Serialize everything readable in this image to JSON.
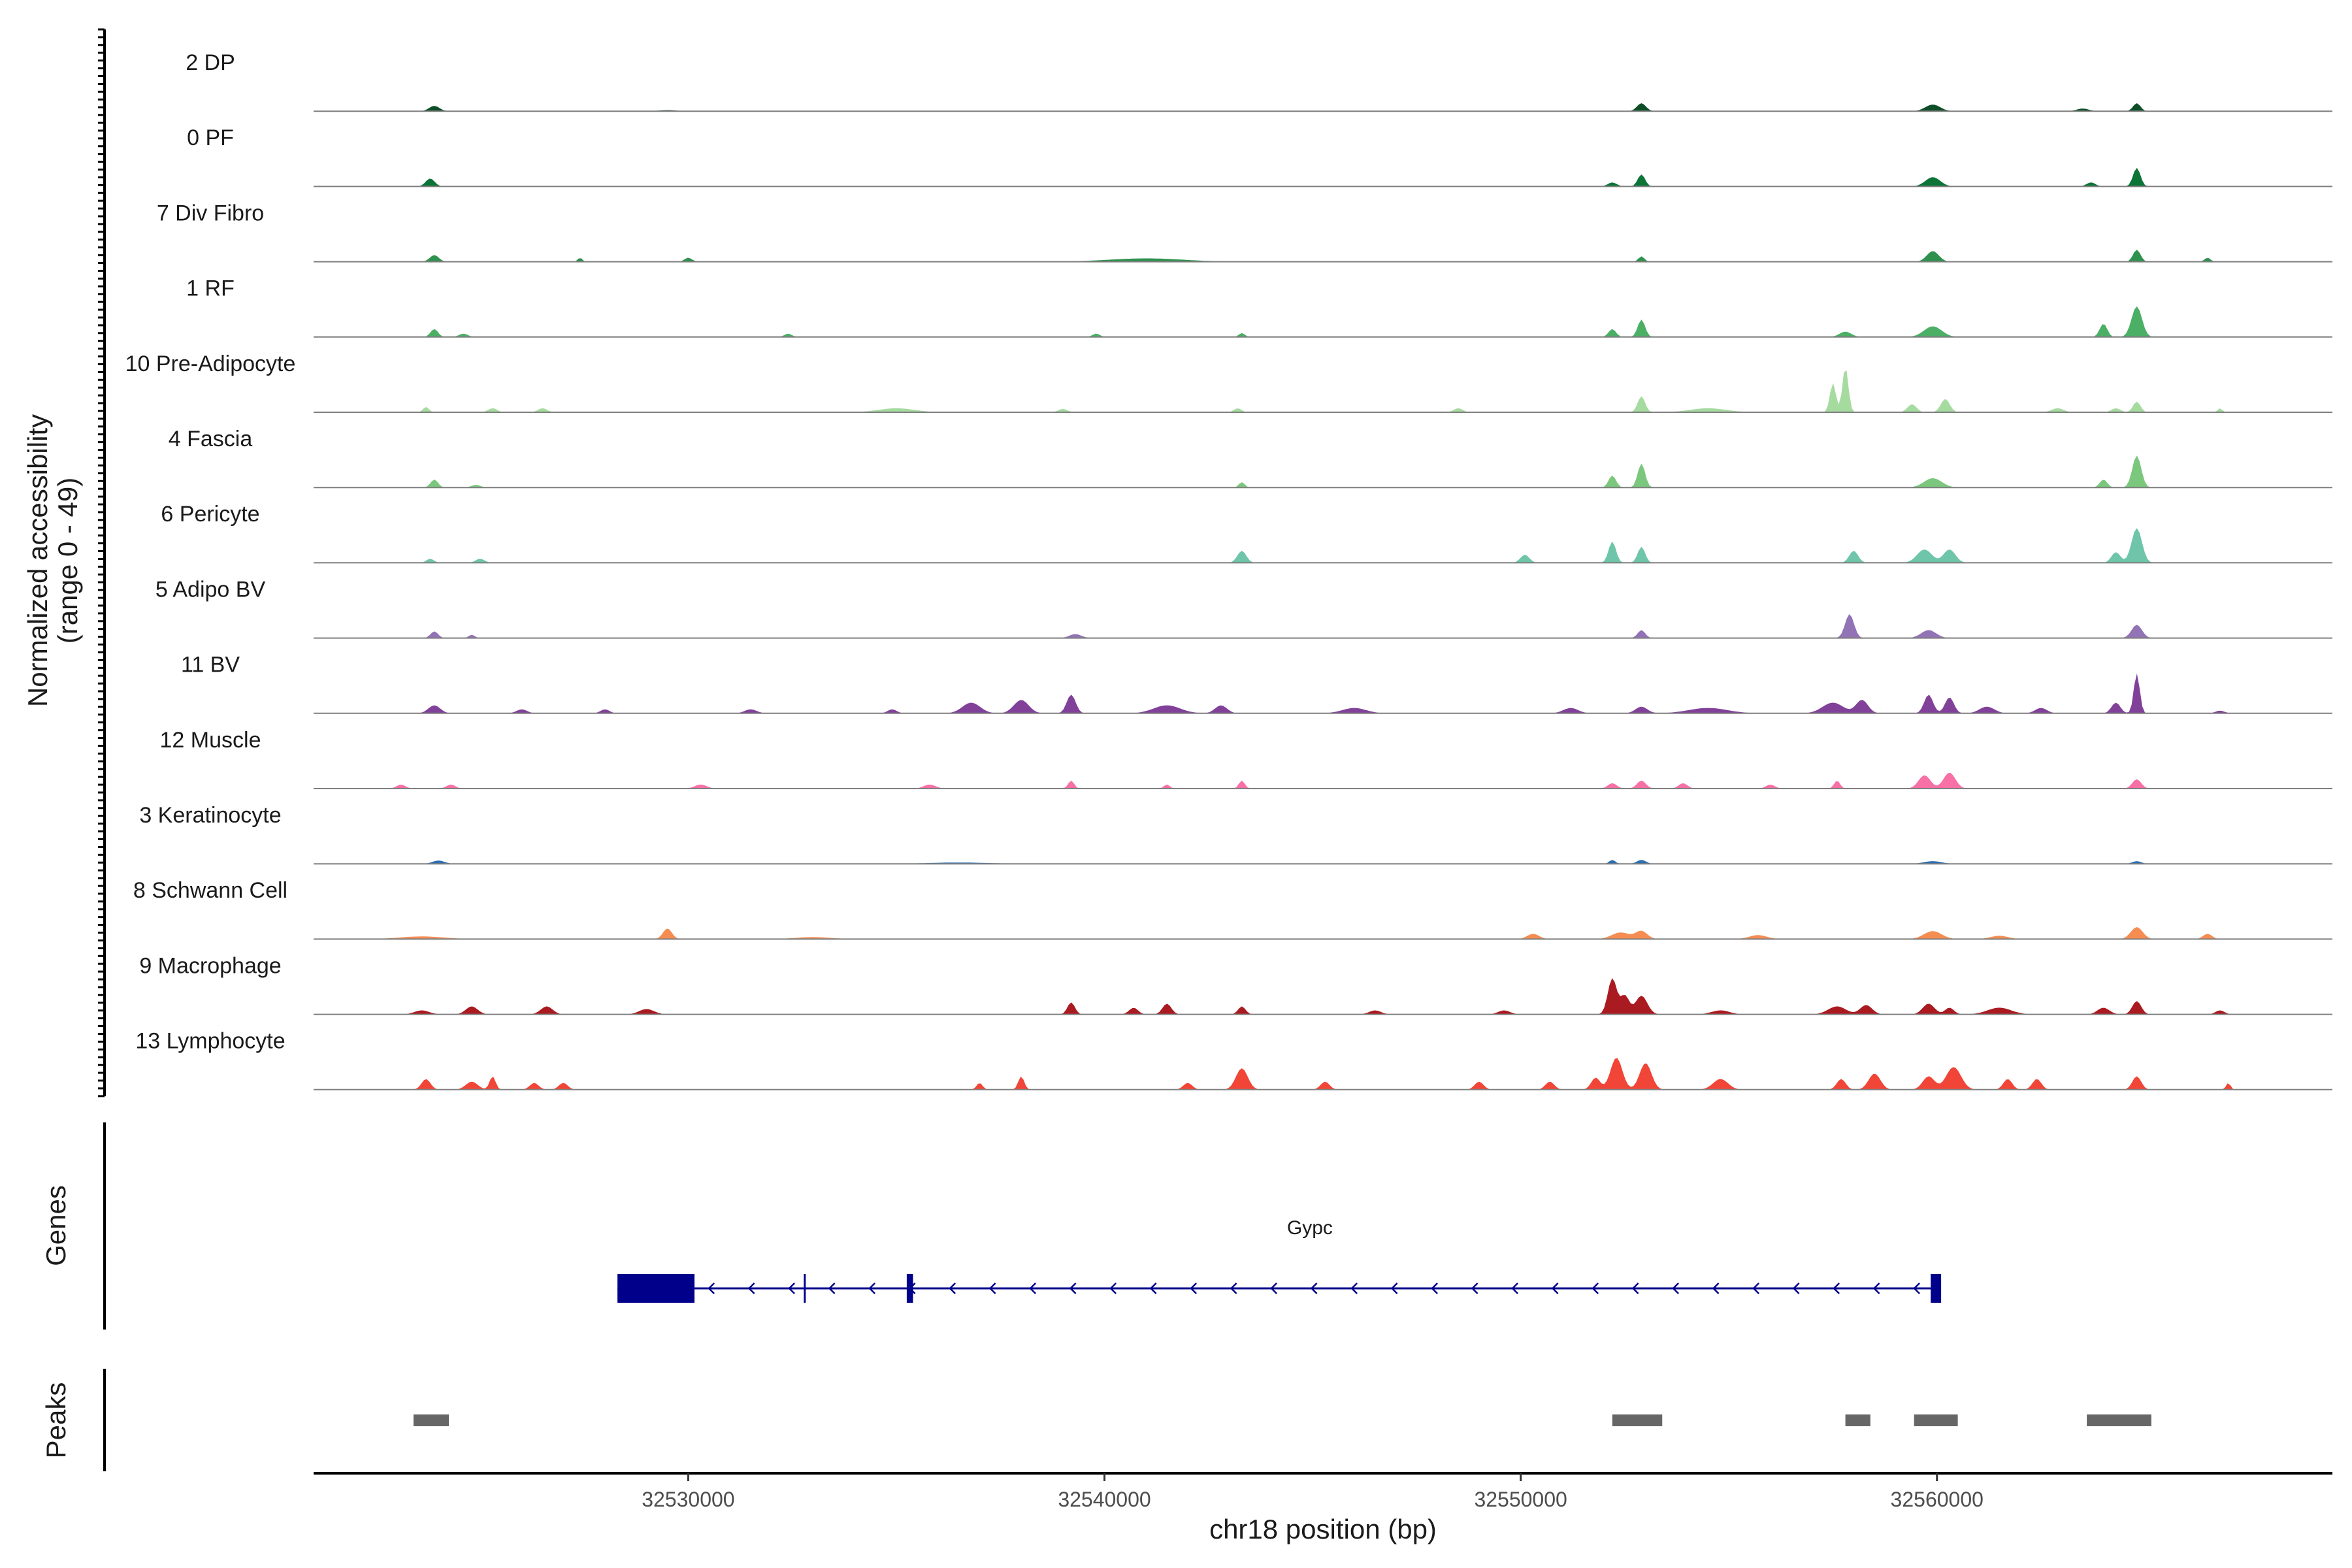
{
  "chart_data": {
    "type": "area",
    "title": "",
    "ylabel_line1": "Normalized accessibility",
    "ylabel_line2": "(range 0 - 49)",
    "y_range": [
      0,
      49
    ],
    "xlabel": "chr18 position (bp)",
    "xlim": [
      32521000,
      32569500
    ],
    "x_ticks": [
      32530000,
      32540000,
      32550000,
      32560000
    ],
    "x_tick_labels": [
      "32530000",
      "32540000",
      "32550000",
      "32560000"
    ],
    "genes_label": "Genes",
    "peaks_label": "Peaks",
    "gene": {
      "name": "Gypc",
      "start": 32528300,
      "end": 32560000,
      "strand": "-",
      "color": "#00008B",
      "exons": [
        [
          32528300,
          32530150
        ],
        [
          32532800,
          32532850
        ],
        [
          32535250,
          32535400
        ],
        [
          32559850,
          32560100
        ]
      ]
    },
    "peaks": [
      [
        32523400,
        32524250
      ],
      [
        32552200,
        32553400
      ],
      [
        32557800,
        32558400
      ],
      [
        32559450,
        32560500
      ],
      [
        32563600,
        32565150
      ]
    ],
    "peak_color": "#666666",
    "series": [
      {
        "name": "2 DP",
        "color": "#00441B",
        "peaks": [
          [
            32523900,
            350,
            4
          ],
          [
            32529500,
            600,
            0.8
          ],
          [
            32552900,
            300,
            6
          ],
          [
            32559900,
            500,
            5
          ],
          [
            32564800,
            250,
            6
          ],
          [
            32563500,
            400,
            2
          ]
        ]
      },
      {
        "name": "0 PF",
        "color": "#006D2C",
        "peaks": [
          [
            32523800,
            300,
            6
          ],
          [
            32552900,
            250,
            9
          ],
          [
            32552200,
            300,
            3
          ],
          [
            32559900,
            500,
            7
          ],
          [
            32564800,
            250,
            14
          ],
          [
            32563700,
            300,
            3
          ]
        ]
      },
      {
        "name": "7 Div Fibro",
        "color": "#238B45",
        "peaks": [
          [
            32523900,
            300,
            5
          ],
          [
            32527400,
            150,
            3
          ],
          [
            32530000,
            250,
            3
          ],
          [
            32541000,
            2500,
            2.5
          ],
          [
            32552900,
            200,
            4
          ],
          [
            32559900,
            400,
            8
          ],
          [
            32564800,
            250,
            9
          ],
          [
            32566500,
            200,
            3
          ]
        ]
      },
      {
        "name": "1 RF",
        "color": "#41AB5D",
        "peaks": [
          [
            32523900,
            250,
            6
          ],
          [
            32524600,
            300,
            2.5
          ],
          [
            32532400,
            250,
            2.5
          ],
          [
            32539800,
            250,
            2.5
          ],
          [
            32543300,
            200,
            3
          ],
          [
            32552200,
            250,
            6
          ],
          [
            32552900,
            250,
            13
          ],
          [
            32557800,
            400,
            4
          ],
          [
            32559900,
            600,
            8
          ],
          [
            32564000,
            250,
            10
          ],
          [
            32564800,
            350,
            23
          ]
        ]
      },
      {
        "name": "10 Pre-Adipocyte",
        "color": "#A1D99B",
        "peaks": [
          [
            32523700,
            200,
            4
          ],
          [
            32525300,
            300,
            3
          ],
          [
            32526500,
            300,
            3
          ],
          [
            32535000,
            1200,
            3
          ],
          [
            32539000,
            300,
            2.5
          ],
          [
            32543200,
            250,
            3
          ],
          [
            32548500,
            300,
            3
          ],
          [
            32552900,
            250,
            12
          ],
          [
            32554500,
            1200,
            3
          ],
          [
            32557800,
            200,
            34
          ],
          [
            32557500,
            200,
            22
          ],
          [
            32559400,
            300,
            6
          ],
          [
            32560200,
            300,
            10
          ],
          [
            32562900,
            400,
            3
          ],
          [
            32564300,
            300,
            3
          ],
          [
            32564800,
            250,
            8
          ],
          [
            32566800,
            150,
            3
          ]
        ]
      },
      {
        "name": "4 Fascia",
        "color": "#74C476",
        "peaks": [
          [
            32523900,
            250,
            6
          ],
          [
            32524900,
            300,
            2
          ],
          [
            32543300,
            200,
            4
          ],
          [
            32552200,
            250,
            9
          ],
          [
            32552900,
            250,
            18
          ],
          [
            32559900,
            600,
            7
          ],
          [
            32564000,
            250,
            6
          ],
          [
            32564800,
            300,
            24
          ]
        ]
      },
      {
        "name": "6 Pericyte",
        "color": "#66C2A4",
        "peaks": [
          [
            32523800,
            250,
            3
          ],
          [
            32525000,
            300,
            3
          ],
          [
            32543300,
            300,
            9
          ],
          [
            32550100,
            300,
            6
          ],
          [
            32552200,
            250,
            16
          ],
          [
            32552900,
            250,
            12
          ],
          [
            32558000,
            300,
            9
          ],
          [
            32559700,
            500,
            10
          ],
          [
            32560300,
            400,
            10
          ],
          [
            32564300,
            300,
            8
          ],
          [
            32564800,
            350,
            26
          ]
        ]
      },
      {
        "name": "5 Adipo BV",
        "color": "#8C6BB1",
        "peaks": [
          [
            32523900,
            250,
            5
          ],
          [
            32524800,
            200,
            2.5
          ],
          [
            32539300,
            400,
            3
          ],
          [
            32552900,
            250,
            6
          ],
          [
            32557900,
            300,
            18
          ],
          [
            32559800,
            500,
            6
          ],
          [
            32564800,
            350,
            10
          ]
        ]
      },
      {
        "name": "11 BV",
        "color": "#7A3794",
        "peaks": [
          [
            32523900,
            400,
            6
          ],
          [
            32526000,
            350,
            3
          ],
          [
            32528000,
            300,
            3
          ],
          [
            32531500,
            400,
            3
          ],
          [
            32534900,
            300,
            3
          ],
          [
            32536800,
            600,
            8
          ],
          [
            32538000,
            500,
            10
          ],
          [
            32539200,
            300,
            14
          ],
          [
            32541500,
            900,
            6
          ],
          [
            32542800,
            400,
            6
          ],
          [
            32546000,
            800,
            4
          ],
          [
            32551200,
            500,
            4
          ],
          [
            32552900,
            400,
            5
          ],
          [
            32554500,
            1300,
            4
          ],
          [
            32557500,
            700,
            8
          ],
          [
            32558200,
            400,
            10
          ],
          [
            32559800,
            300,
            14
          ],
          [
            32560300,
            300,
            12
          ],
          [
            32561200,
            500,
            5
          ],
          [
            32562500,
            400,
            4
          ],
          [
            32564300,
            300,
            8
          ],
          [
            32564800,
            200,
            30
          ],
          [
            32566800,
            300,
            2
          ]
        ]
      },
      {
        "name": "12 Muscle",
        "color": "#F768A1",
        "peaks": [
          [
            32523100,
            300,
            3
          ],
          [
            32524300,
            300,
            3
          ],
          [
            32530300,
            400,
            3
          ],
          [
            32535800,
            400,
            3
          ],
          [
            32539200,
            200,
            6
          ],
          [
            32541500,
            200,
            3
          ],
          [
            32543300,
            200,
            6
          ],
          [
            32552200,
            300,
            4
          ],
          [
            32552900,
            300,
            6
          ],
          [
            32553900,
            300,
            4
          ],
          [
            32556000,
            300,
            3
          ],
          [
            32557600,
            200,
            6
          ],
          [
            32559700,
            400,
            10
          ],
          [
            32560300,
            400,
            12
          ],
          [
            32564800,
            300,
            7
          ]
        ]
      },
      {
        "name": "3 Keratinocyte",
        "color": "#2166AC",
        "peaks": [
          [
            32524000,
            400,
            2.5
          ],
          [
            32536500,
            2000,
            1
          ],
          [
            32552200,
            200,
            3
          ],
          [
            32552900,
            300,
            3
          ],
          [
            32559900,
            600,
            2
          ],
          [
            32564800,
            300,
            2
          ]
        ]
      },
      {
        "name": "8 Schwann Cell",
        "color": "#F4874A",
        "peaks": [
          [
            32523600,
            1500,
            2
          ],
          [
            32529500,
            300,
            8
          ],
          [
            32533000,
            1200,
            1.5
          ],
          [
            32550300,
            400,
            4
          ],
          [
            32552400,
            600,
            5
          ],
          [
            32552900,
            400,
            6
          ],
          [
            32555700,
            600,
            3
          ],
          [
            32559900,
            600,
            6
          ],
          [
            32561500,
            600,
            2.5
          ],
          [
            32564800,
            400,
            9
          ],
          [
            32566500,
            300,
            4
          ]
        ]
      },
      {
        "name": "9 Macrophage",
        "color": "#A50F15",
        "peaks": [
          [
            32523600,
            500,
            3
          ],
          [
            32524800,
            400,
            6
          ],
          [
            32526600,
            400,
            6
          ],
          [
            32529000,
            500,
            4
          ],
          [
            32539200,
            250,
            9
          ],
          [
            32540700,
            300,
            5
          ],
          [
            32541500,
            300,
            8
          ],
          [
            32543300,
            250,
            6
          ],
          [
            32546500,
            400,
            3
          ],
          [
            32549600,
            400,
            3
          ],
          [
            32552200,
            300,
            27
          ],
          [
            32552500,
            300,
            14
          ],
          [
            32552900,
            400,
            14
          ],
          [
            32554800,
            600,
            3
          ],
          [
            32557600,
            600,
            6
          ],
          [
            32558300,
            400,
            7
          ],
          [
            32559800,
            400,
            8
          ],
          [
            32560300,
            300,
            5
          ],
          [
            32561500,
            800,
            5
          ],
          [
            32564000,
            400,
            5
          ],
          [
            32564800,
            300,
            10
          ],
          [
            32566800,
            300,
            3
          ]
        ]
      },
      {
        "name": "13 Lymphocyte",
        "color": "#EF3B2C",
        "peaks": [
          [
            32523700,
            300,
            8
          ],
          [
            32524800,
            400,
            6
          ],
          [
            32525300,
            200,
            10
          ],
          [
            32526300,
            300,
            5
          ],
          [
            32527000,
            300,
            5
          ],
          [
            32537000,
            200,
            5
          ],
          [
            32538000,
            200,
            10
          ],
          [
            32542000,
            300,
            5
          ],
          [
            32543300,
            400,
            16
          ],
          [
            32545300,
            300,
            6
          ],
          [
            32549000,
            300,
            6
          ],
          [
            32550700,
            300,
            6
          ],
          [
            32551800,
            300,
            9
          ],
          [
            32552300,
            400,
            24
          ],
          [
            32553000,
            400,
            20
          ],
          [
            32554800,
            500,
            8
          ],
          [
            32557700,
            300,
            8
          ],
          [
            32558500,
            400,
            12
          ],
          [
            32559800,
            400,
            10
          ],
          [
            32560400,
            500,
            17
          ],
          [
            32561700,
            300,
            8
          ],
          [
            32562400,
            300,
            8
          ],
          [
            32564800,
            300,
            10
          ],
          [
            32567000,
            150,
            5
          ]
        ]
      }
    ]
  }
}
